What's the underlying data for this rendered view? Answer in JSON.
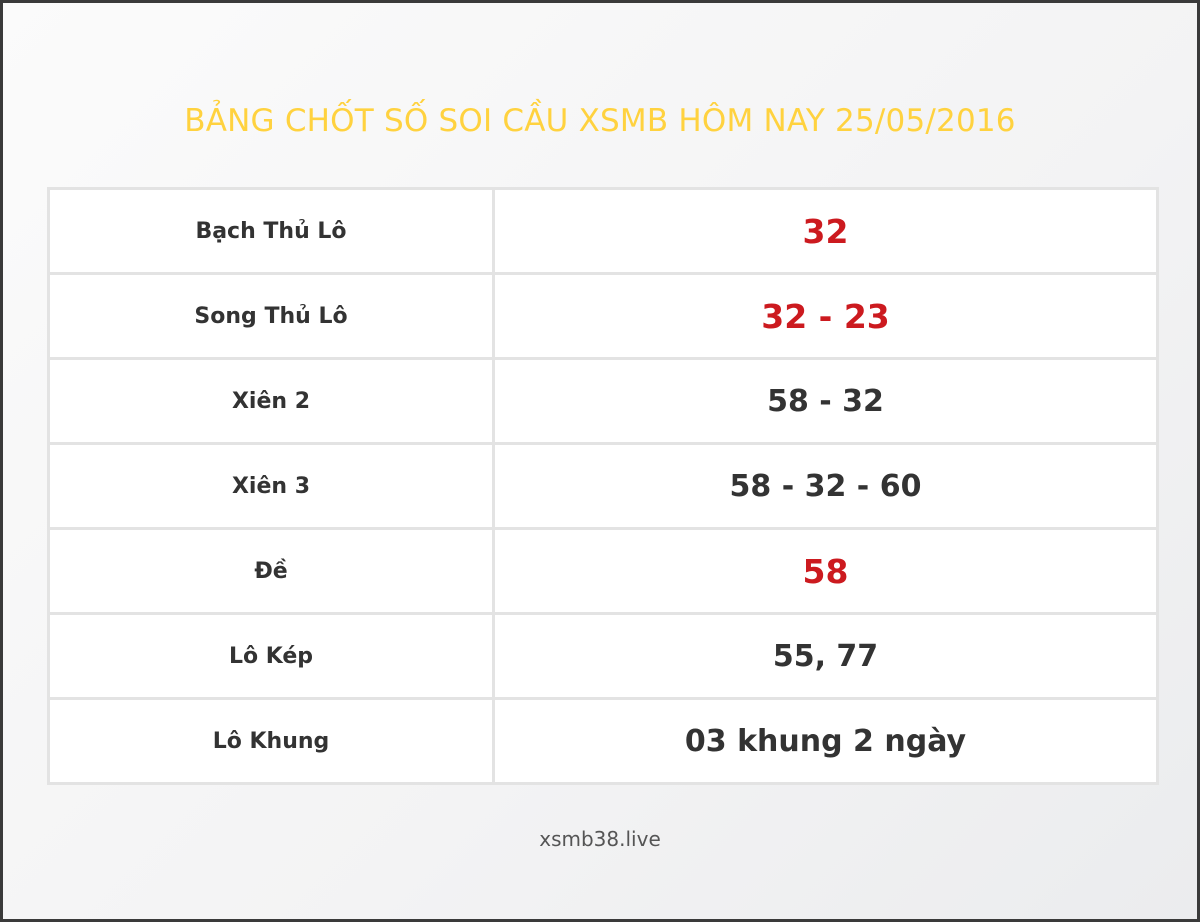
{
  "title": "BẢNG CHỐT SỐ SOI CẦU XSMB HÔM NAY 25/05/2016",
  "colors": {
    "title": "#ffd23f",
    "highlight": "#cc1a1f",
    "text": "#333333"
  },
  "rows": [
    {
      "label": "Bạch Thủ Lô",
      "value": "32",
      "highlight": true
    },
    {
      "label": "Song Thủ Lô",
      "value": "32 - 23",
      "highlight": true
    },
    {
      "label": "Xiên 2",
      "value": "58 - 32",
      "highlight": false
    },
    {
      "label": "Xiên 3",
      "value": "58 - 32 - 60",
      "highlight": false
    },
    {
      "label": "Đề",
      "value": "58",
      "highlight": true
    },
    {
      "label": "Lô Kép",
      "value": "55, 77",
      "highlight": false
    },
    {
      "label": "Lô Khung",
      "value": "03 khung 2 ngày",
      "highlight": false
    }
  ],
  "footer": "xsmb38.live"
}
